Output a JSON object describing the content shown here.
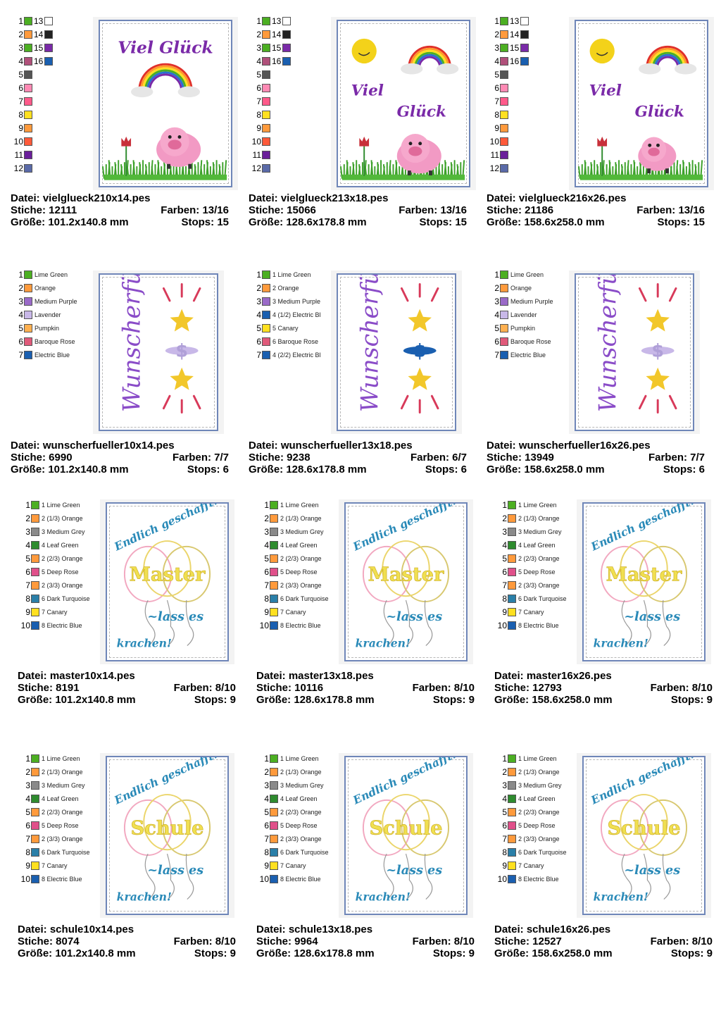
{
  "sections": [
    {
      "design": "vielglueck",
      "art_text": [
        "Viel Glück"
      ],
      "legend_style": "numbers",
      "legend": [
        {
          "n": "1",
          "color": "#4caf22"
        },
        {
          "n": "2",
          "color": "#ff9a3c"
        },
        {
          "n": "3",
          "color": "#4caf22"
        },
        {
          "n": "4",
          "color": "#b0507a"
        },
        {
          "n": "5",
          "color": "#555555"
        },
        {
          "n": "6",
          "color": "#ff8ab4"
        },
        {
          "n": "7",
          "color": "#ff5a8a"
        },
        {
          "n": "8",
          "color": "#ffe020"
        },
        {
          "n": "9",
          "color": "#ff9a3c"
        },
        {
          "n": "10",
          "color": "#ff5a3a"
        },
        {
          "n": "11",
          "color": "#6a1f9a"
        },
        {
          "n": "12",
          "color": "#5a6aa8"
        }
      ],
      "legend_extra": [
        {
          "n": "13",
          "color": "#ffffff"
        },
        {
          "n": "14",
          "color": "#222222"
        },
        {
          "n": "15",
          "color": "#7a2aa8"
        },
        {
          "n": "16",
          "color": "#1a5fb0"
        }
      ],
      "items": [
        {
          "datei": "vielglueck210x14.pes",
          "stiche": "12111",
          "farben": "13/16",
          "groesse": "101.2x140.8 mm",
          "stops": "15"
        },
        {
          "datei": "vielglueck213x18.pes",
          "stiche": "15066",
          "farben": "13/16",
          "groesse": "128.6x178.8 mm",
          "stops": "15"
        },
        {
          "datei": "vielglueck216x26.pes",
          "stiche": "21186",
          "farben": "13/16",
          "groesse": "158.6x258.0 mm",
          "stops": "15"
        }
      ]
    },
    {
      "design": "wunscher",
      "art_text": [
        "Wunscherfüller",
        "$"
      ],
      "legend_style": "named",
      "legend_variants": [
        [
          {
            "n": "1",
            "color": "#4caf22",
            "name": "Lime Green"
          },
          {
            "n": "2",
            "color": "#ff9a3c",
            "name": "Orange"
          },
          {
            "n": "3",
            "color": "#9a6ac8",
            "name": "Medium Purple"
          },
          {
            "n": "4",
            "color": "#c8b8e8",
            "name": "Lavender"
          },
          {
            "n": "5",
            "color": "#ffb050",
            "name": "Pumpkin"
          },
          {
            "n": "6",
            "color": "#e05a7a",
            "name": "Baroque Rose"
          },
          {
            "n": "7",
            "color": "#1a5fb0",
            "name": "Electric Blue"
          }
        ],
        [
          {
            "n": "1",
            "color": "#4caf22",
            "name": "1 Lime Green"
          },
          {
            "n": "2",
            "color": "#ff9a3c",
            "name": "2 Orange"
          },
          {
            "n": "3",
            "color": "#9a6ac8",
            "name": "3 Medium Purple"
          },
          {
            "n": "4",
            "color": "#1a5fb0",
            "name": "4 (1/2) Electric Bl"
          },
          {
            "n": "5",
            "color": "#ffe020",
            "name": "5 Canary"
          },
          {
            "n": "6",
            "color": "#e05a7a",
            "name": "6 Baroque Rose"
          },
          {
            "n": "7",
            "color": "#1a5fb0",
            "name": "4 (2/2) Electric Bl"
          }
        ],
        [
          {
            "n": "1",
            "color": "#4caf22",
            "name": "Lime Green"
          },
          {
            "n": "2",
            "color": "#ff9a3c",
            "name": "Orange"
          },
          {
            "n": "3",
            "color": "#9a6ac8",
            "name": "Medium Purple"
          },
          {
            "n": "4",
            "color": "#c8b8e8",
            "name": "Lavender"
          },
          {
            "n": "5",
            "color": "#ffb050",
            "name": "Pumpkin"
          },
          {
            "n": "6",
            "color": "#e05a7a",
            "name": "Baroque Rose"
          },
          {
            "n": "7",
            "color": "#1a5fb0",
            "name": "Electric Blue"
          }
        ]
      ],
      "items": [
        {
          "datei": "wunscherfueller10x14.pes",
          "stiche": "6990",
          "farben": "7/7",
          "groesse": "101.2x140.8 mm",
          "stops": "6"
        },
        {
          "datei": "wunscherfueller13x18.pes",
          "stiche": "9238",
          "farben": "6/7",
          "groesse": "128.6x178.8 mm",
          "stops": "6"
        },
        {
          "datei": "wunscherfueller16x26.pes",
          "stiche": "13949",
          "farben": "7/7",
          "groesse": "158.6x258.0 mm",
          "stops": "6"
        }
      ]
    },
    {
      "design": "master",
      "art_text": [
        "Endlich geschafft!",
        "Master",
        "~lass es",
        "krachen!"
      ],
      "legend_style": "named",
      "legend": [
        {
          "n": "1",
          "color": "#4caf22",
          "name": "1 Lime Green"
        },
        {
          "n": "2",
          "color": "#ff9a3c",
          "name": "2 (1/3) Orange"
        },
        {
          "n": "3",
          "color": "#8a8a8a",
          "name": "3 Medium Grey"
        },
        {
          "n": "4",
          "color": "#2e8b2e",
          "name": "4 Leaf Green"
        },
        {
          "n": "5",
          "color": "#ff9a3c",
          "name": "2 (2/3) Orange"
        },
        {
          "n": "6",
          "color": "#e0508a",
          "name": "5 Deep Rose"
        },
        {
          "n": "7",
          "color": "#ff9a3c",
          "name": "2 (3/3) Orange"
        },
        {
          "n": "8",
          "color": "#2a7fa8",
          "name": "6 Dark Turquoise"
        },
        {
          "n": "9",
          "color": "#ffe020",
          "name": "7 Canary"
        },
        {
          "n": "10",
          "color": "#1a5fb0",
          "name": "8 Electric Blue"
        }
      ],
      "items": [
        {
          "datei": "master10x14.pes",
          "stiche": "8191",
          "farben": "8/10",
          "groesse": "101.2x140.8 mm",
          "stops": "9"
        },
        {
          "datei": "master13x18.pes",
          "stiche": "10116",
          "farben": "8/10",
          "groesse": "128.6x178.8 mm",
          "stops": "9"
        },
        {
          "datei": "master16x26.pes",
          "stiche": "12793",
          "farben": "8/10",
          "groesse": "158.6x258.0 mm",
          "stops": "9"
        }
      ]
    },
    {
      "design": "schule",
      "art_text": [
        "Endlich geschafft!",
        "Schule",
        "~lass es",
        "krachen!"
      ],
      "legend_style": "named",
      "legend": [
        {
          "n": "1",
          "color": "#4caf22",
          "name": "1 Lime Green"
        },
        {
          "n": "2",
          "color": "#ff9a3c",
          "name": "2 (1/3) Orange"
        },
        {
          "n": "3",
          "color": "#8a8a8a",
          "name": "3 Medium Grey"
        },
        {
          "n": "4",
          "color": "#2e8b2e",
          "name": "4 Leaf Green"
        },
        {
          "n": "5",
          "color": "#ff9a3c",
          "name": "2 (2/3) Orange"
        },
        {
          "n": "6",
          "color": "#e0508a",
          "name": "5 Deep Rose"
        },
        {
          "n": "7",
          "color": "#ff9a3c",
          "name": "2 (3/3) Orange"
        },
        {
          "n": "8",
          "color": "#2a7fa8",
          "name": "6 Dark Turquoise"
        },
        {
          "n": "9",
          "color": "#ffe020",
          "name": "7 Canary"
        },
        {
          "n": "10",
          "color": "#1a5fb0",
          "name": "8 Electric Blue"
        }
      ],
      "items": [
        {
          "datei": "schule10x14.pes",
          "stiche": "8074",
          "farben": "8/10",
          "groesse": "101.2x140.8 mm",
          "stops": "9"
        },
        {
          "datei": "schule13x18.pes",
          "stiche": "9964",
          "farben": "8/10",
          "groesse": "128.6x178.8 mm",
          "stops": "9"
        },
        {
          "datei": "schule16x26.pes",
          "stiche": "12527",
          "farben": "8/10",
          "groesse": "158.6x258.0 mm",
          "stops": "9"
        }
      ]
    }
  ],
  "labels": {
    "datei": "Datei:",
    "stiche": "Stiche:",
    "farben": "Farben:",
    "groesse": "Größe:",
    "stops": "Stops:"
  }
}
